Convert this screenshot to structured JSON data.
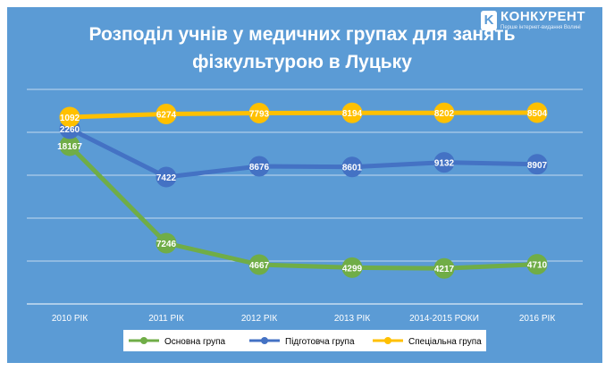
{
  "chart_data": {
    "type": "line",
    "title_line1": "Розподіл учнів у медичних групах для занять",
    "title_line2": "фізкультурою в Луцьку",
    "categories": [
      "2010 РІК",
      "2011 РІК",
      "2012 РІК",
      "2013 РІК",
      "2014-2015 РОКИ",
      "2016 РІК"
    ],
    "series": [
      {
        "name": "Основна група",
        "color": "#70ad47",
        "values": [
          18167,
          7246,
          4667,
          4299,
          4217,
          4710
        ]
      },
      {
        "name": "Підготовча група",
        "color": "#4472c4",
        "values": [
          2260,
          7422,
          8676,
          8601,
          9132,
          8907
        ]
      },
      {
        "name": "Спеціальна група",
        "color": "#ffc000",
        "values": [
          1092,
          6274,
          7793,
          8194,
          8202,
          8504
        ]
      }
    ],
    "grid": true,
    "legend_position": "bottom"
  },
  "logo": {
    "name": "КОНКУРЕНТ",
    "tagline": "Перше інтернет-видання Волині"
  }
}
